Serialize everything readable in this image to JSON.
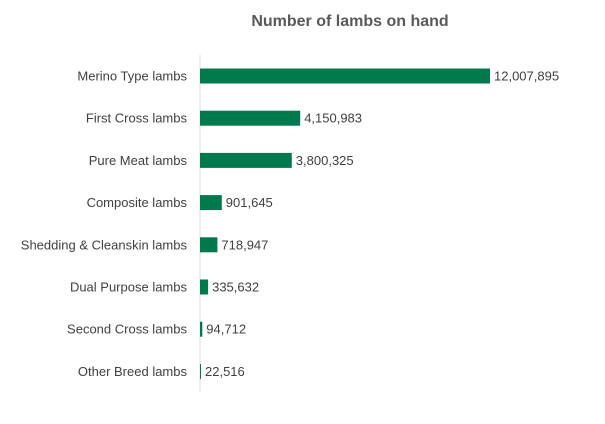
{
  "chart_data": {
    "type": "bar",
    "orientation": "horizontal",
    "title": "Number of lambs on hand",
    "xlabel": "",
    "ylabel": "",
    "grid": false,
    "legend": "none",
    "bar_color": "#007A4D",
    "axis_color": "#D9D9D9",
    "categories": [
      "Merino Type lambs",
      "First Cross lambs",
      "Pure Meat lambs",
      "Composite lambs",
      "Shedding & Cleanskin lambs",
      "Dual Purpose lambs",
      "Second Cross lambs",
      "Other Breed lambs"
    ],
    "values": [
      12007895,
      4150983,
      3800325,
      901645,
      718947,
      335632,
      94712,
      22516
    ],
    "value_labels": [
      "12,007,895",
      "4,150,983",
      "3,800,325",
      "901,645",
      "718,947",
      "335,632",
      "94,712",
      "22,516"
    ],
    "xlim": [
      0,
      12007895
    ]
  }
}
